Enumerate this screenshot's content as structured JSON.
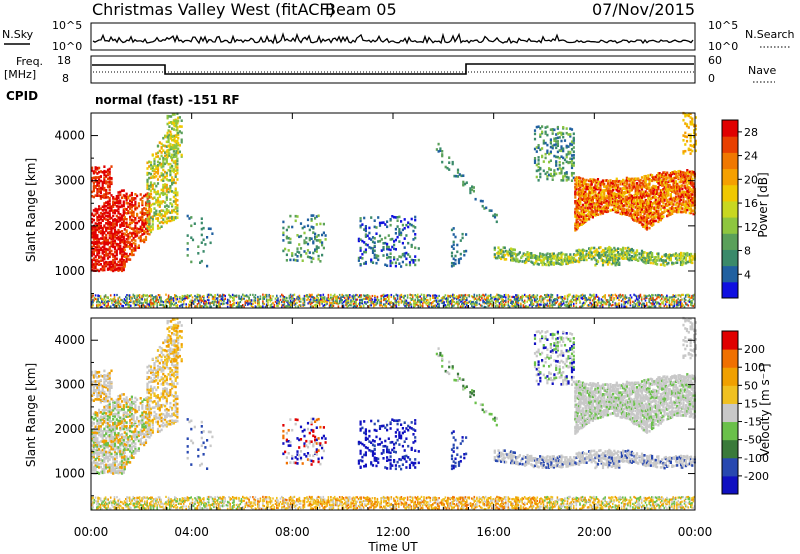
{
  "header": {
    "title": "Christmas Valley West (fitACF)",
    "beam": "Beam 05",
    "date": "07/Nov/2015"
  },
  "top_panels": {
    "nsky_label": "N.Sky",
    "nsky_ticks": [
      "10^5",
      "10^0"
    ],
    "nsearch_label": "N.Search",
    "nsearch_ticks": [
      "10^5",
      "10^0"
    ],
    "freq_label_1": "Freq.",
    "freq_label_2": "[MHz]",
    "freq_ticks": [
      "18",
      "8"
    ],
    "nave_label": "Nave",
    "nave_ticks": [
      "60",
      "0"
    ],
    "cpid_label": "CPID",
    "cpid_text": "normal (fast) -151 RF"
  },
  "chart_data": [
    {
      "type": "heatmap",
      "name": "power",
      "ylabel": "Slant Range [km]",
      "xlabel": "Time UT",
      "x_ticks": [
        "00:00",
        "04:00",
        "08:00",
        "12:00",
        "16:00",
        "20:00",
        "00:00"
      ],
      "y_ticks": [
        "1000",
        "2000",
        "3000",
        "4000"
      ],
      "ylim": [
        180,
        4500
      ],
      "xlim_hours": [
        0,
        24
      ],
      "colorbar": {
        "label": "Power [dB]",
        "ticks": [
          "4",
          "8",
          "12",
          "16",
          "20",
          "24",
          "28"
        ],
        "range": [
          0,
          30
        ],
        "colors": [
          "#1010e0",
          "#2060a0",
          "#3a8a6a",
          "#5aa05a",
          "#8ec63f",
          "#c8d820",
          "#f0c800",
          "#f5a000",
          "#f07800",
          "#e84000",
          "#e00000"
        ]
      }
    },
    {
      "type": "heatmap",
      "name": "velocity",
      "ylabel": "Slant Range [km]",
      "xlabel": "Time UT",
      "x_ticks": [
        "00:00",
        "04:00",
        "08:00",
        "12:00",
        "16:00",
        "20:00",
        "00:00"
      ],
      "y_ticks": [
        "1000",
        "2000",
        "3000",
        "4000"
      ],
      "ylim": [
        180,
        4500
      ],
      "xlim_hours": [
        0,
        24
      ],
      "colorbar": {
        "label": "Velocity [m s⁻¹]",
        "ticks": [
          "200",
          "100",
          "50",
          "15",
          "-15",
          "-50",
          "-100",
          "-200"
        ],
        "colors": [
          "#1010c0",
          "#2848b0",
          "#3a7a3a",
          "#6ac04a",
          "#c8c8c8",
          "#f0c020",
          "#f0a000",
          "#f07000",
          "#e00000"
        ]
      }
    }
  ],
  "colors": {
    "ground_scatter": "#c8c8c8"
  }
}
